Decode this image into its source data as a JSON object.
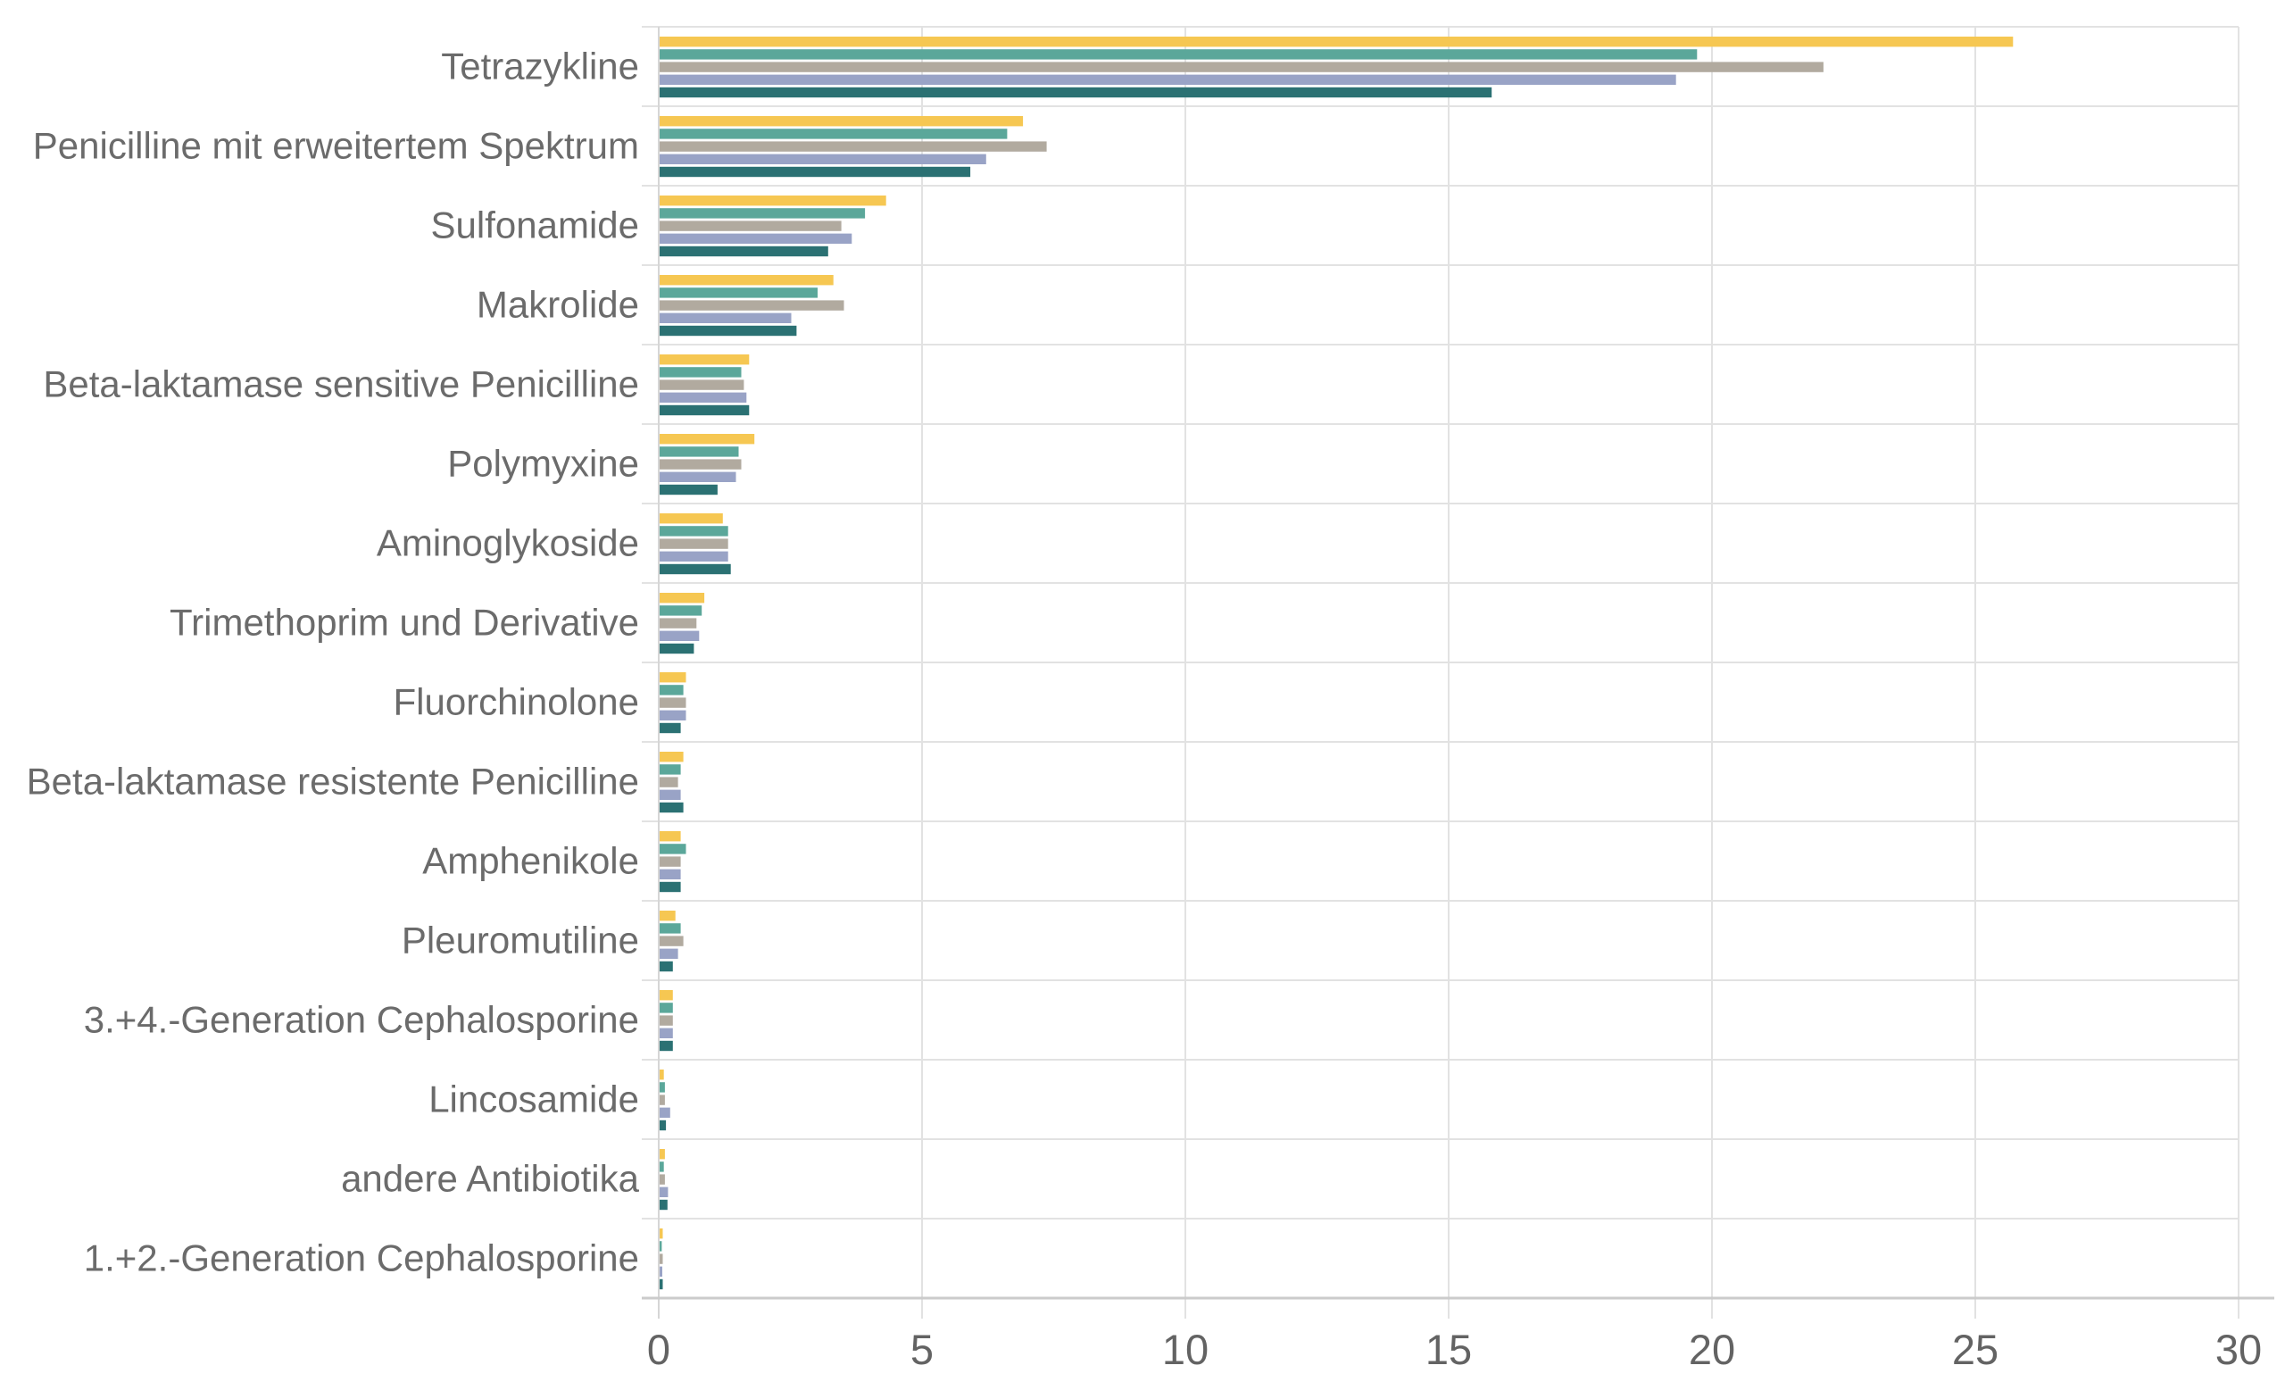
{
  "chart_data": {
    "type": "bar",
    "orientation": "horizontal",
    "title": "",
    "xlabel": "",
    "ylabel": "",
    "xlim": [
      0,
      30
    ],
    "xticks": [
      0,
      5,
      10,
      15,
      20,
      25,
      30
    ],
    "grid": true,
    "legend": "none",
    "categories": [
      "Tetrazykline",
      "Penicilline mit erweitertem Spektrum",
      "Sulfonamide",
      "Makrolide",
      "Beta-laktamase sensitive Penicilline",
      "Polymyxine",
      "Aminoglykoside",
      "Trimethoprim und Derivative",
      "Fluorchinolone",
      "Beta-laktamase resistente Penicilline",
      "Amphenikole",
      "Pleuromutiline",
      "3.+4.-Generation Cephalosporine",
      "Lincosamide",
      "andere Antibiotika",
      "1.+2.-Generation Cephalosporine"
    ],
    "series": [
      {
        "color": "#F6C752",
        "values": [
          25.7,
          6.9,
          4.3,
          3.3,
          1.7,
          1.8,
          1.2,
          0.85,
          0.5,
          0.45,
          0.4,
          0.3,
          0.25,
          0.08,
          0.1,
          0.06
        ]
      },
      {
        "color": "#5BA79A",
        "values": [
          19.7,
          6.6,
          3.9,
          3.0,
          1.55,
          1.5,
          1.3,
          0.8,
          0.45,
          0.4,
          0.5,
          0.4,
          0.25,
          0.1,
          0.08,
          0.04
        ]
      },
      {
        "color": "#B1AA9F",
        "values": [
          22.1,
          7.35,
          3.45,
          3.5,
          1.6,
          1.55,
          1.3,
          0.7,
          0.5,
          0.35,
          0.4,
          0.45,
          0.25,
          0.1,
          0.1,
          0.06
        ]
      },
      {
        "color": "#99A3C6",
        "values": [
          19.3,
          6.2,
          3.65,
          2.5,
          1.65,
          1.45,
          1.3,
          0.75,
          0.5,
          0.4,
          0.4,
          0.35,
          0.25,
          0.2,
          0.16,
          0.05
        ]
      },
      {
        "color": "#2B7173",
        "values": [
          15.8,
          5.9,
          3.2,
          2.6,
          1.7,
          1.1,
          1.35,
          0.65,
          0.4,
          0.45,
          0.4,
          0.25,
          0.25,
          0.12,
          0.15,
          0.06
        ]
      }
    ],
    "colors": {
      "category_label": "#6b6b6b",
      "tick_label": "#636363",
      "gridline": "#e2e2e2",
      "zero_line": "#d6d6d6",
      "axis_line": "#cbcbcb",
      "background": "#ffffff"
    }
  }
}
